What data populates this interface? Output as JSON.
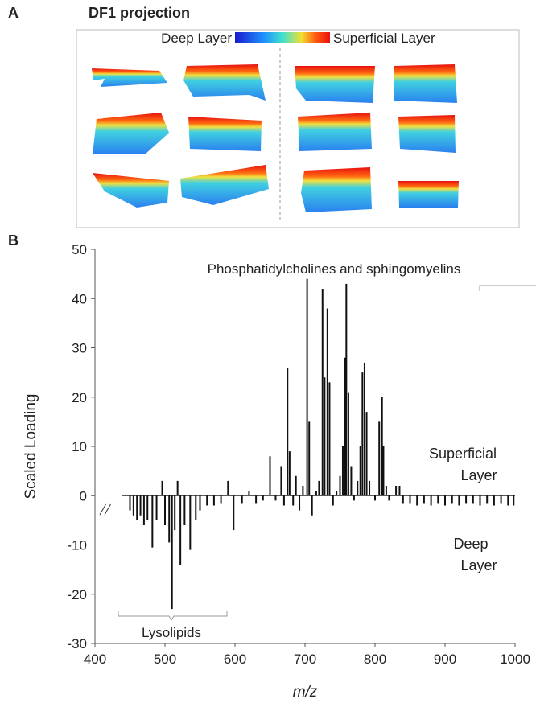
{
  "panel_a": {
    "label": "A",
    "title": "DF1 projection",
    "colorbar_left": "Deep Layer",
    "colorbar_right": "Superficial Layer"
  },
  "chart_data": {
    "type": "stem",
    "panel_label": "B",
    "ylabel": "Scaled Loading",
    "xlabel": "m/z",
    "annotations": [
      "Phosphatidylcholines and sphingomyelins",
      "Lysolipids"
    ],
    "side_labels": [
      [
        "Superficial",
        "Layer"
      ],
      [
        "Deep",
        "Layer"
      ]
    ],
    "color": "#111111",
    "xlim": [
      400,
      1000
    ],
    "xticks": [
      400,
      500,
      600,
      700,
      800,
      900,
      1000
    ],
    "ylim": [
      -30,
      50
    ],
    "yticks": [
      -30,
      -20,
      -10,
      0,
      10,
      20,
      30,
      40,
      50
    ],
    "x": [
      450,
      455,
      460,
      465,
      470,
      475,
      482,
      488,
      496,
      500,
      506,
      510,
      514,
      518,
      522,
      528,
      536,
      544,
      550,
      560,
      570,
      580,
      590,
      598,
      610,
      620,
      630,
      640,
      650,
      658,
      666,
      670,
      675,
      678,
      683,
      687,
      692,
      697,
      703,
      706,
      710,
      716,
      720,
      725,
      728,
      732,
      735,
      740,
      745,
      750,
      754,
      757,
      759,
      762,
      766,
      770,
      775,
      779,
      782,
      785,
      788,
      792,
      800,
      806,
      810,
      812,
      816,
      820,
      830,
      835,
      840,
      850,
      860,
      870,
      880,
      890,
      900,
      910,
      920,
      930,
      940,
      950,
      960,
      970,
      980,
      990,
      998
    ],
    "values": [
      -3,
      -4,
      -5,
      -4,
      -6,
      -5,
      -10.5,
      -5,
      3,
      -6,
      -9.5,
      -23,
      -7,
      3,
      -14,
      -6,
      -11,
      -5,
      -3,
      -2,
      -2,
      -1.5,
      3,
      -7,
      -1.5,
      1,
      -1.5,
      -1,
      8,
      -1,
      6,
      -2,
      26,
      9,
      -2,
      4,
      -3,
      2,
      44,
      15,
      -4,
      1,
      3,
      42,
      24,
      38,
      23,
      -2,
      1,
      4,
      10,
      28,
      43,
      21,
      6,
      -1,
      3,
      10,
      25,
      27,
      17,
      3,
      -1,
      15,
      20,
      10,
      2,
      -1,
      2,
      2,
      -1.5,
      -1.5,
      -2,
      -1.5,
      -2,
      -1.5,
      -2,
      -1.5,
      -2,
      -1.5,
      -1.5,
      -2,
      -1.5,
      -2,
      -1.5,
      -2,
      -2
    ]
  }
}
